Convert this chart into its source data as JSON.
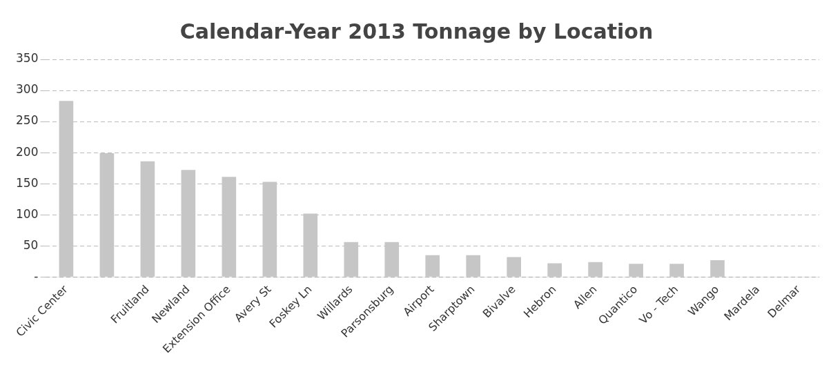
{
  "chart_data": {
    "type": "bar",
    "title": "Calendar-Year 2013 Tonnage by Location",
    "categories": [
      "Civic Center",
      null,
      "Fruitland",
      "Newland",
      "Extension Office",
      "Avery St",
      "Foskey Ln",
      "Willards",
      "Parsonsburg",
      "Airport",
      "Sharptown",
      "Bivalve",
      "Hebron",
      "Allen",
      "Quantico",
      "Vo - Tech",
      "Wango",
      "Mardela",
      "Delmar"
    ],
    "values": [
      283,
      199,
      186,
      172,
      161,
      153,
      102,
      56,
      56,
      35,
      35,
      32,
      22,
      24,
      21,
      21,
      27,
      null,
      null
    ],
    "color": "#c6c6c6",
    "ylim": [
      0,
      350
    ],
    "yticks": [
      {
        "value": 0,
        "label": "-"
      },
      50,
      100,
      150,
      200,
      250,
      300,
      350
    ],
    "grid": "y"
  }
}
